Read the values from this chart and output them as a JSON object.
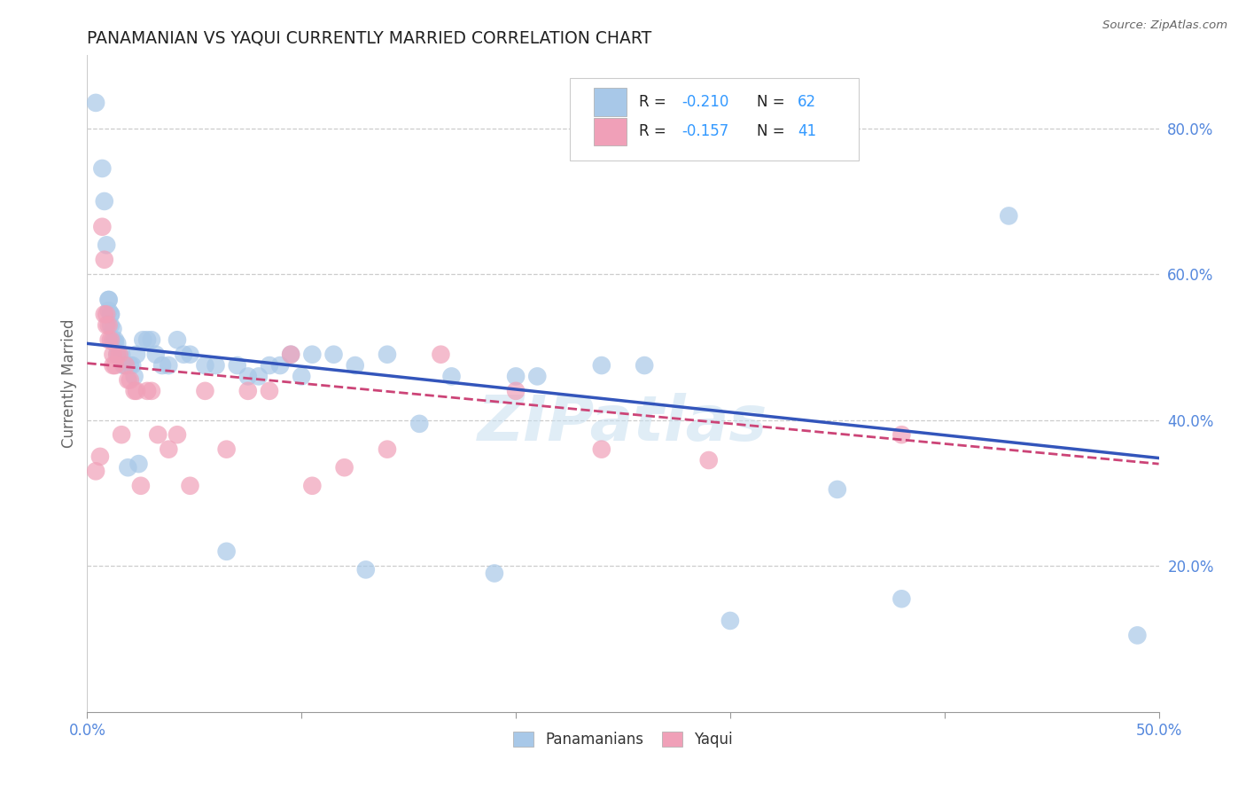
{
  "title": "PANAMANIAN VS YAQUI CURRENTLY MARRIED CORRELATION CHART",
  "source": "Source: ZipAtlas.com",
  "ylabel": "Currently Married",
  "xlim": [
    0.0,
    0.5
  ],
  "ylim": [
    0.0,
    0.9
  ],
  "yticks": [
    0.2,
    0.4,
    0.6,
    0.8
  ],
  "ytick_labels": [
    "20.0%",
    "40.0%",
    "60.0%",
    "80.0%"
  ],
  "xtick_vals": [
    0.0,
    0.1,
    0.2,
    0.3,
    0.4,
    0.5
  ],
  "xtick_labels": [
    "0.0%",
    "",
    "",
    "",
    "",
    "50.0%"
  ],
  "grid_color": "#cccccc",
  "background_color": "#ffffff",
  "blue_color": "#a8c8e8",
  "pink_color": "#f0a0b8",
  "blue_line_color": "#3355bb",
  "pink_line_color": "#cc4477",
  "blue_line_start_y": 0.505,
  "blue_line_end_y": 0.348,
  "pink_line_start_y": 0.478,
  "pink_line_end_y": 0.34,
  "watermark": "ZIPatlas",
  "legend_R_blue": "-0.210",
  "legend_N_blue": "62",
  "legend_R_pink": "-0.157",
  "legend_N_pink": "41",
  "blue_x": [
    0.004,
    0.007,
    0.008,
    0.009,
    0.01,
    0.01,
    0.01,
    0.011,
    0.011,
    0.011,
    0.012,
    0.012,
    0.013,
    0.013,
    0.014,
    0.014,
    0.015,
    0.016,
    0.017,
    0.018,
    0.019,
    0.02,
    0.021,
    0.022,
    0.023,
    0.024,
    0.026,
    0.028,
    0.03,
    0.032,
    0.035,
    0.038,
    0.042,
    0.045,
    0.048,
    0.055,
    0.06,
    0.065,
    0.07,
    0.075,
    0.08,
    0.085,
    0.09,
    0.095,
    0.1,
    0.105,
    0.115,
    0.125,
    0.13,
    0.14,
    0.155,
    0.17,
    0.19,
    0.2,
    0.21,
    0.24,
    0.26,
    0.3,
    0.35,
    0.38,
    0.43,
    0.49
  ],
  "blue_y": [
    0.835,
    0.745,
    0.7,
    0.64,
    0.565,
    0.565,
    0.55,
    0.545,
    0.545,
    0.53,
    0.525,
    0.51,
    0.51,
    0.505,
    0.505,
    0.49,
    0.49,
    0.49,
    0.475,
    0.475,
    0.335,
    0.475,
    0.475,
    0.46,
    0.49,
    0.34,
    0.51,
    0.51,
    0.51,
    0.49,
    0.475,
    0.475,
    0.51,
    0.49,
    0.49,
    0.475,
    0.475,
    0.22,
    0.475,
    0.46,
    0.46,
    0.475,
    0.475,
    0.49,
    0.46,
    0.49,
    0.49,
    0.475,
    0.195,
    0.49,
    0.395,
    0.46,
    0.19,
    0.46,
    0.46,
    0.475,
    0.475,
    0.125,
    0.305,
    0.155,
    0.68,
    0.105
  ],
  "pink_x": [
    0.004,
    0.006,
    0.007,
    0.008,
    0.008,
    0.009,
    0.009,
    0.01,
    0.01,
    0.011,
    0.012,
    0.012,
    0.013,
    0.014,
    0.015,
    0.016,
    0.018,
    0.019,
    0.02,
    0.022,
    0.023,
    0.025,
    0.028,
    0.03,
    0.033,
    0.038,
    0.042,
    0.048,
    0.055,
    0.065,
    0.075,
    0.085,
    0.095,
    0.105,
    0.12,
    0.14,
    0.165,
    0.2,
    0.24,
    0.29,
    0.38
  ],
  "pink_y": [
    0.33,
    0.35,
    0.665,
    0.62,
    0.545,
    0.545,
    0.53,
    0.53,
    0.51,
    0.51,
    0.49,
    0.475,
    0.475,
    0.49,
    0.49,
    0.38,
    0.475,
    0.455,
    0.455,
    0.44,
    0.44,
    0.31,
    0.44,
    0.44,
    0.38,
    0.36,
    0.38,
    0.31,
    0.44,
    0.36,
    0.44,
    0.44,
    0.49,
    0.31,
    0.335,
    0.36,
    0.49,
    0.44,
    0.36,
    0.345,
    0.38
  ]
}
